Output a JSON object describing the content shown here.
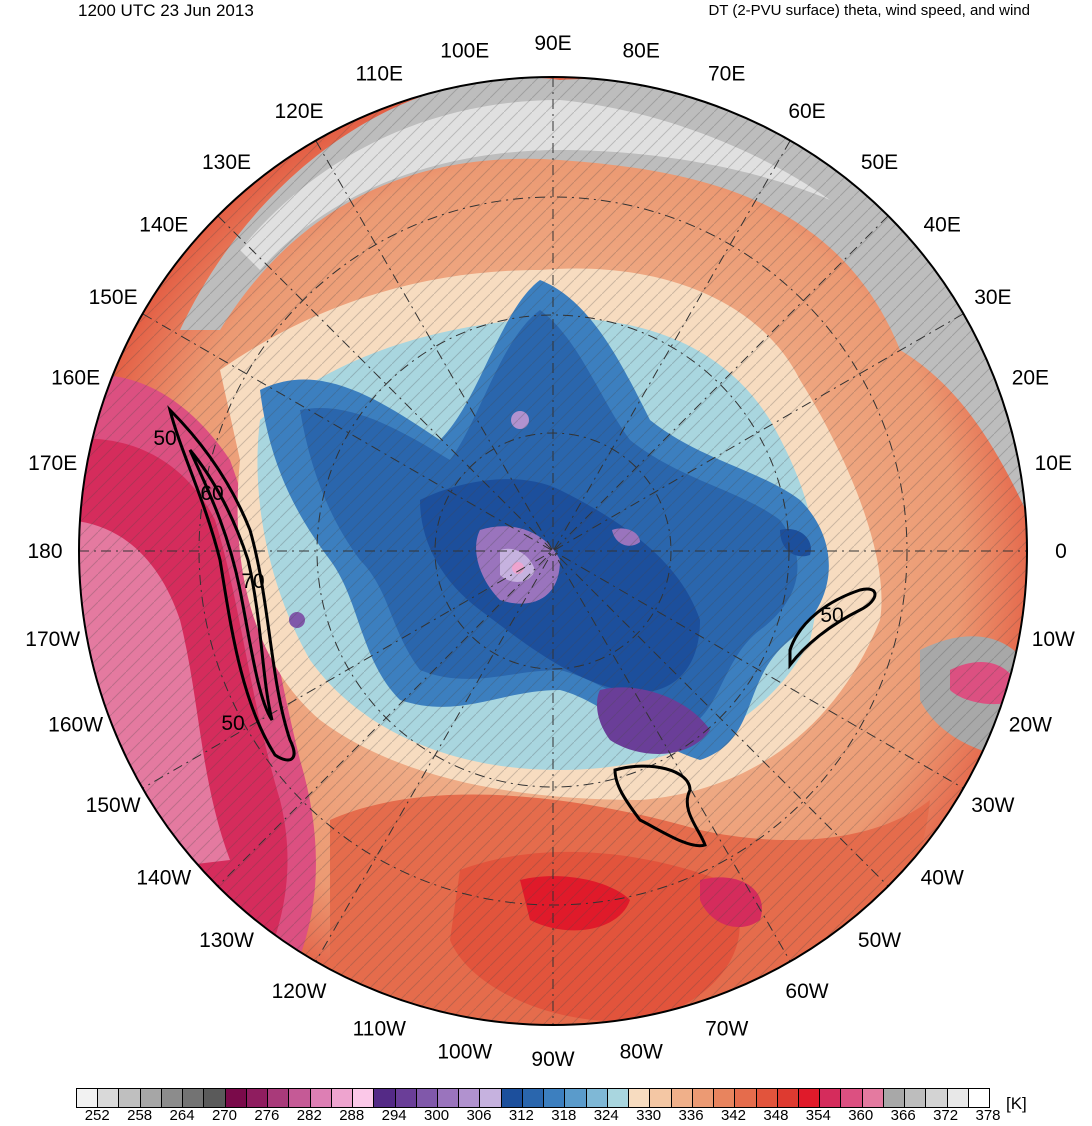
{
  "header": {
    "valid_time": "1200 UTC 23 Jun 2013",
    "product": "DT (2-PVU surface) theta, wind speed, and wind"
  },
  "map": {
    "projection": "north-polar-stereographic",
    "longitude_labels": [
      "0",
      "10E",
      "20E",
      "30E",
      "40E",
      "50E",
      "60E",
      "70E",
      "80E",
      "90E",
      "100E",
      "110E",
      "120E",
      "130E",
      "140E",
      "150E",
      "160E",
      "170E",
      "180",
      "170W",
      "160W",
      "150W",
      "140W",
      "130W",
      "120W",
      "110W",
      "100W",
      "90W",
      "80W",
      "70W",
      "60W",
      "50W",
      "40W",
      "30W",
      "20W",
      "10W"
    ],
    "wind_speed_contours": [
      "50",
      "60",
      "70",
      "50",
      "50"
    ]
  },
  "colorbar": {
    "unit": "[K]",
    "tick_labels": [
      "252",
      "258",
      "264",
      "270",
      "276",
      "282",
      "288",
      "294",
      "300",
      "306",
      "312",
      "318",
      "324",
      "330",
      "336",
      "342",
      "348",
      "354",
      "360",
      "366",
      "372",
      "378"
    ],
    "colors": [
      "#f2f2f2",
      "#d9d9d9",
      "#bfbfbf",
      "#a6a6a6",
      "#8c8c8c",
      "#737373",
      "#5a5a5a",
      "#7a0a4a",
      "#8f1d5f",
      "#a93a7a",
      "#c55a96",
      "#dd7fb4",
      "#eea4cf",
      "#fbc8e8",
      "#542a86",
      "#6a3e98",
      "#8058aa",
      "#9a74bd",
      "#b192cf",
      "#c6b2df",
      "#1c4f9c",
      "#2a66ad",
      "#3c7fbf",
      "#5a9bcb",
      "#7fb8d6",
      "#a9d6df",
      "#f7dcc0",
      "#f4c7a4",
      "#f0b08a",
      "#ec9a73",
      "#e8845e",
      "#e56c4c",
      "#e2543c",
      "#de3a30",
      "#e01a2a",
      "#d52c5c",
      "#dc5081",
      "#e47aa0",
      "#a8a8a8",
      "#bdbdbd",
      "#d3d3d3",
      "#e8e8e8",
      "#ffffff"
    ]
  }
}
